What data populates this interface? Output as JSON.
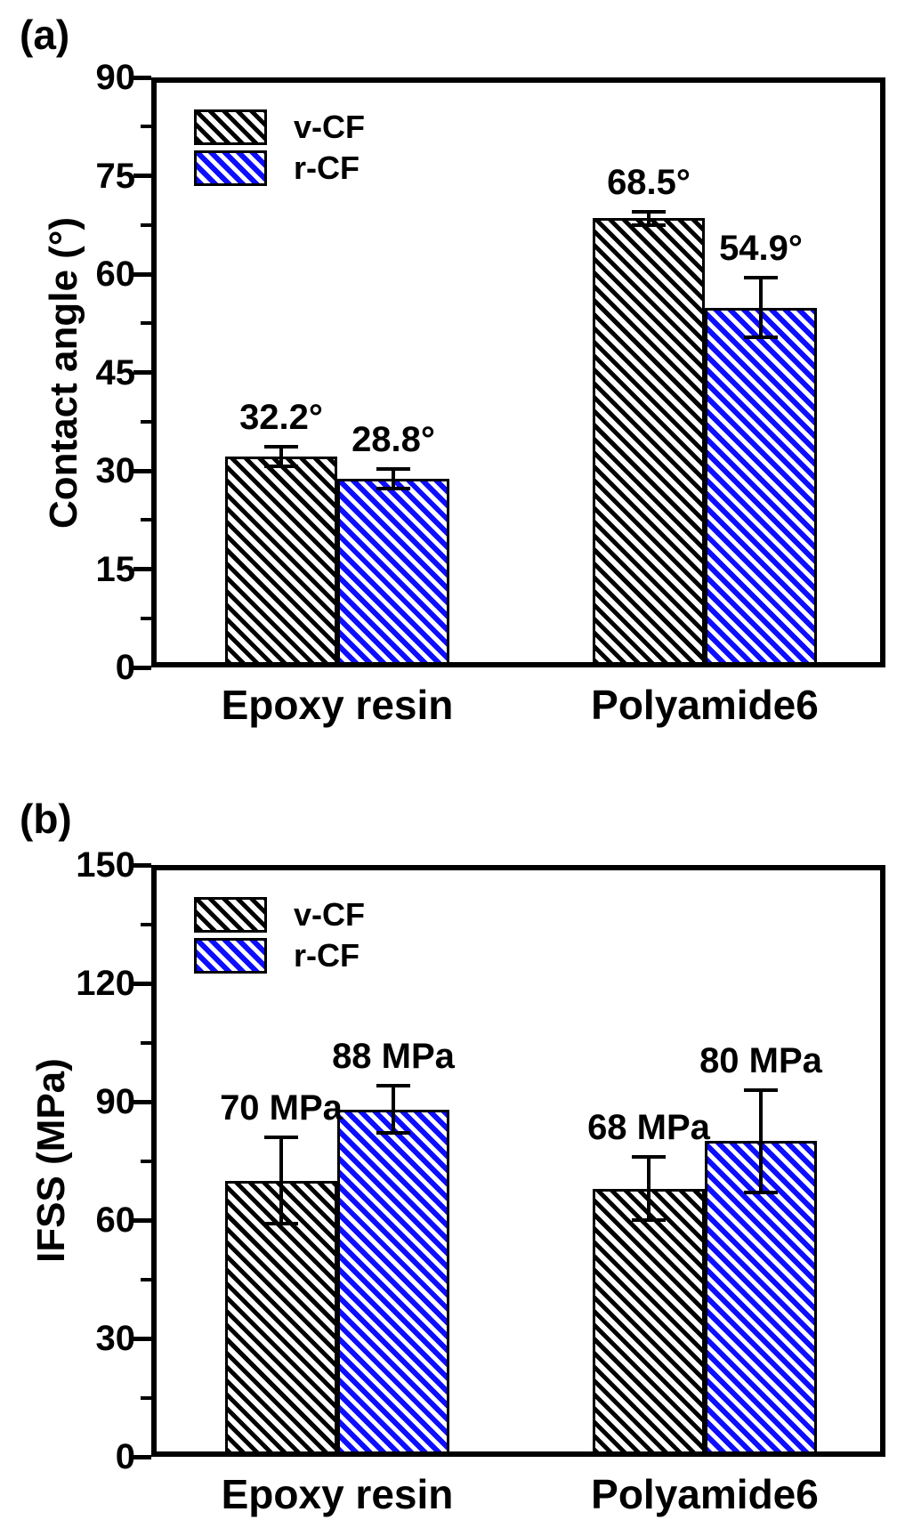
{
  "figure": {
    "background": "#ffffff",
    "text_color": "#000000"
  },
  "colors": {
    "v_cf": "#000000",
    "r_cf": "#0d0dff",
    "axis": "#000000",
    "bar_outline": "#000000"
  },
  "chart_data": [
    {
      "type": "bar",
      "panel_label": "(a)",
      "categories": [
        "Epoxy resin",
        "Polyamide6"
      ],
      "series": [
        {
          "name": "v-CF",
          "color": "#000000",
          "hatch": "diagonal-stripes",
          "values": [
            32.2,
            68.5
          ],
          "errors": [
            1.5,
            1.0
          ],
          "value_labels": [
            "32.2°",
            "68.5°"
          ]
        },
        {
          "name": "r-CF",
          "color": "#0d0dff",
          "hatch": "diagonal-stripes",
          "values": [
            28.8,
            54.9
          ],
          "errors": [
            1.5,
            4.5
          ],
          "value_labels": [
            "28.8°",
            "54.9°"
          ]
        }
      ],
      "xlabel": "",
      "ylabel": "Contact angle (°)",
      "ylim": [
        0,
        90
      ],
      "yticks": [
        0,
        15,
        30,
        45,
        60,
        75,
        90
      ],
      "minor_ticks": true,
      "grid": false,
      "legend_position": "top-left",
      "error_bars": true
    },
    {
      "type": "bar",
      "panel_label": "(b)",
      "categories": [
        "Epoxy resin",
        "Polyamide6"
      ],
      "series": [
        {
          "name": "v-CF",
          "color": "#000000",
          "hatch": "diagonal-stripes",
          "values": [
            70,
            68
          ],
          "errors": [
            11,
            8
          ],
          "value_labels": [
            "70 MPa",
            "68 MPa"
          ]
        },
        {
          "name": "r-CF",
          "color": "#0d0dff",
          "hatch": "diagonal-stripes",
          "values": [
            88,
            80
          ],
          "errors": [
            6,
            13
          ],
          "value_labels": [
            "88 MPa",
            "80 MPa"
          ]
        }
      ],
      "xlabel": "",
      "ylabel": "IFSS (MPa)",
      "ylim": [
        0,
        150
      ],
      "yticks": [
        0,
        30,
        60,
        90,
        120,
        150
      ],
      "minor_ticks": true,
      "grid": false,
      "legend_position": "top-left",
      "error_bars": true
    }
  ]
}
